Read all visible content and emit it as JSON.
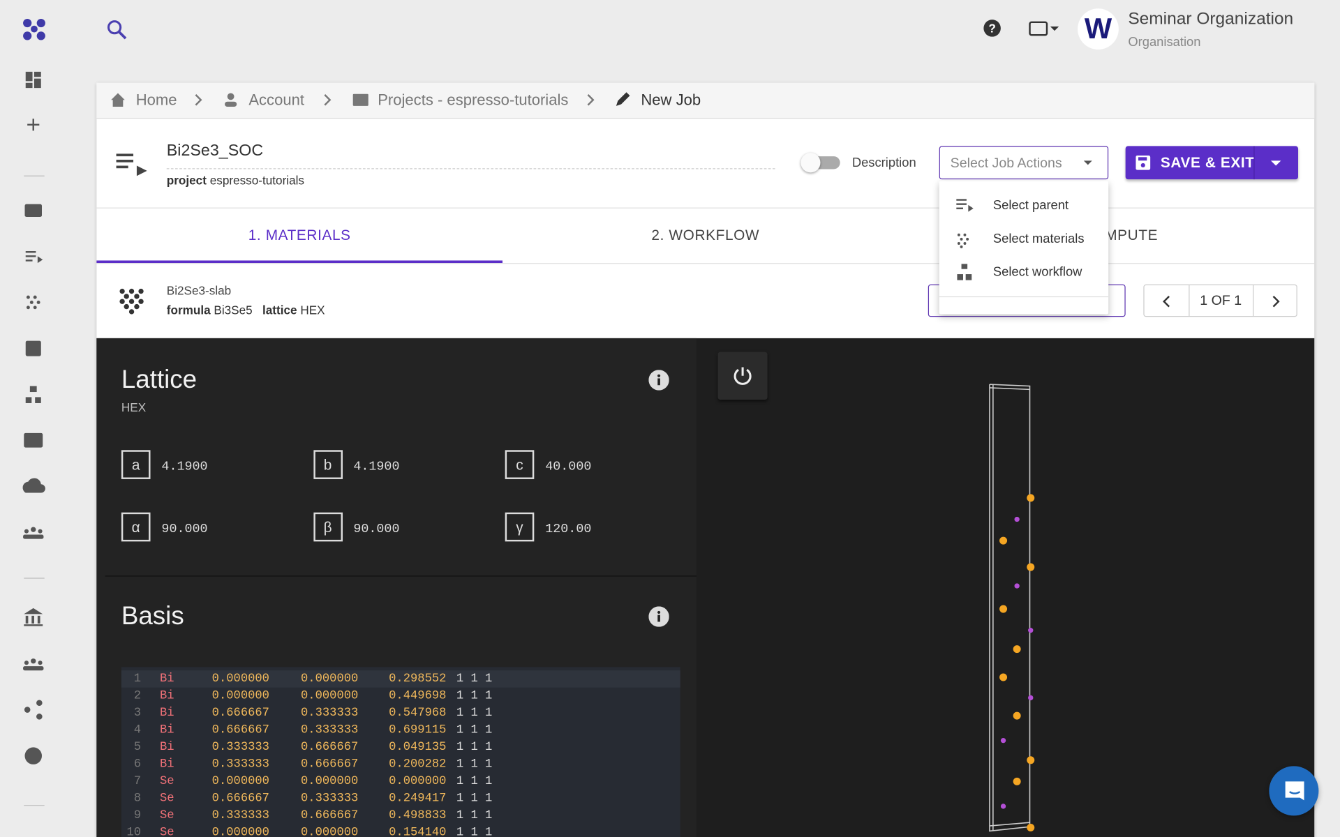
{
  "header": {
    "org_name": "Seminar Organization",
    "org_type": "Organisation",
    "avatar": "W"
  },
  "breadcrumbs": [
    "Home",
    "Account",
    "Projects - espresso-tutorials",
    "New Job"
  ],
  "job": {
    "name": "Bi2Se3_SOC",
    "project_label": "project",
    "project": "espresso-tutorials",
    "description_label": "Description",
    "actions_placeholder": "Select Job Actions",
    "save": "SAVE & EXIT"
  },
  "actions_menu": [
    "Select parent",
    "Select materials",
    "Select workflow"
  ],
  "tabs": [
    "1. MATERIALS",
    "2. WORKFLOW",
    "3. COMPUTE"
  ],
  "material": {
    "name": "Bi2Se3-slab",
    "formula_label": "formula",
    "formula": "Bi3Se5",
    "lattice_label": "lattice",
    "lattice": "HEX",
    "pager": "1 OF 1"
  },
  "lattice": {
    "title": "Lattice",
    "type": "HEX",
    "params": [
      {
        "label": "a",
        "value": "4.1900"
      },
      {
        "label": "b",
        "value": "4.1900"
      },
      {
        "label": "c",
        "value": "40.000"
      },
      {
        "label": "α",
        "value": "90.000"
      },
      {
        "label": "β",
        "value": "90.000"
      },
      {
        "label": "γ",
        "value": "120.00"
      }
    ]
  },
  "basis": {
    "title": "Basis",
    "rows": [
      [
        "1",
        "Bi",
        "0.000000",
        "0.000000",
        "0.298552",
        "1 1 1"
      ],
      [
        "2",
        "Bi",
        "0.000000",
        "0.000000",
        "0.449698",
        "1 1 1"
      ],
      [
        "3",
        "Bi",
        "0.666667",
        "0.333333",
        "0.547968",
        "1 1 1"
      ],
      [
        "4",
        "Bi",
        "0.666667",
        "0.333333",
        "0.699115",
        "1 1 1"
      ],
      [
        "5",
        "Bi",
        "0.333333",
        "0.666667",
        "0.049135",
        "1 1 1"
      ],
      [
        "6",
        "Bi",
        "0.333333",
        "0.666667",
        "0.200282",
        "1 1 1"
      ],
      [
        "7",
        "Se",
        "0.000000",
        "0.000000",
        "0.000000",
        "1 1 1"
      ],
      [
        "8",
        "Se",
        "0.666667",
        "0.333333",
        "0.249417",
        "1 1 1"
      ],
      [
        "9",
        "Se",
        "0.333333",
        "0.666667",
        "0.498833",
        "1 1 1"
      ],
      [
        "10",
        "Se",
        "0.000000",
        "0.000000",
        "0.154140",
        "1 1 1"
      ]
    ]
  }
}
